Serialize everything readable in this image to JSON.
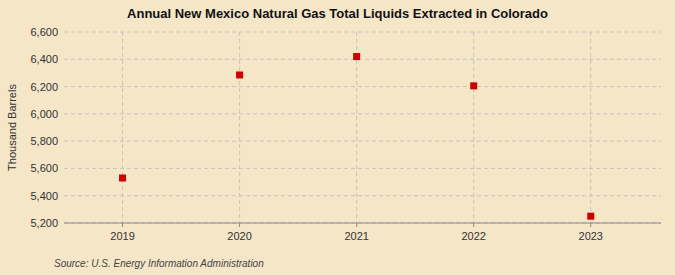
{
  "chart_data": {
    "type": "scatter",
    "title": "Annual New Mexico Natural Gas Total Liquids Extracted in Colorado",
    "ylabel": "Thousand Barrels",
    "source": "Source: U.S. Energy Information Administration",
    "x": [
      2019,
      2020,
      2021,
      2022,
      2023
    ],
    "values": [
      5530,
      6285,
      6420,
      6205,
      5250
    ],
    "xlim": [
      2018.5,
      2023.6
    ],
    "xticks": [
      2019,
      2020,
      2021,
      2022,
      2023
    ],
    "ylim": [
      5200,
      6600
    ],
    "yticks": [
      {
        "value": 5200,
        "label": "5,200"
      },
      {
        "value": 5400,
        "label": "5,400"
      },
      {
        "value": 5600,
        "label": "5,600"
      },
      {
        "value": 5800,
        "label": "5,800"
      },
      {
        "value": 6000,
        "label": "6,000"
      },
      {
        "value": 6200,
        "label": "6,200"
      },
      {
        "value": 6400,
        "label": "6,400"
      },
      {
        "value": 6600,
        "label": "6,600"
      }
    ],
    "color": "#cc0000",
    "marker": "square",
    "grid": true
  }
}
